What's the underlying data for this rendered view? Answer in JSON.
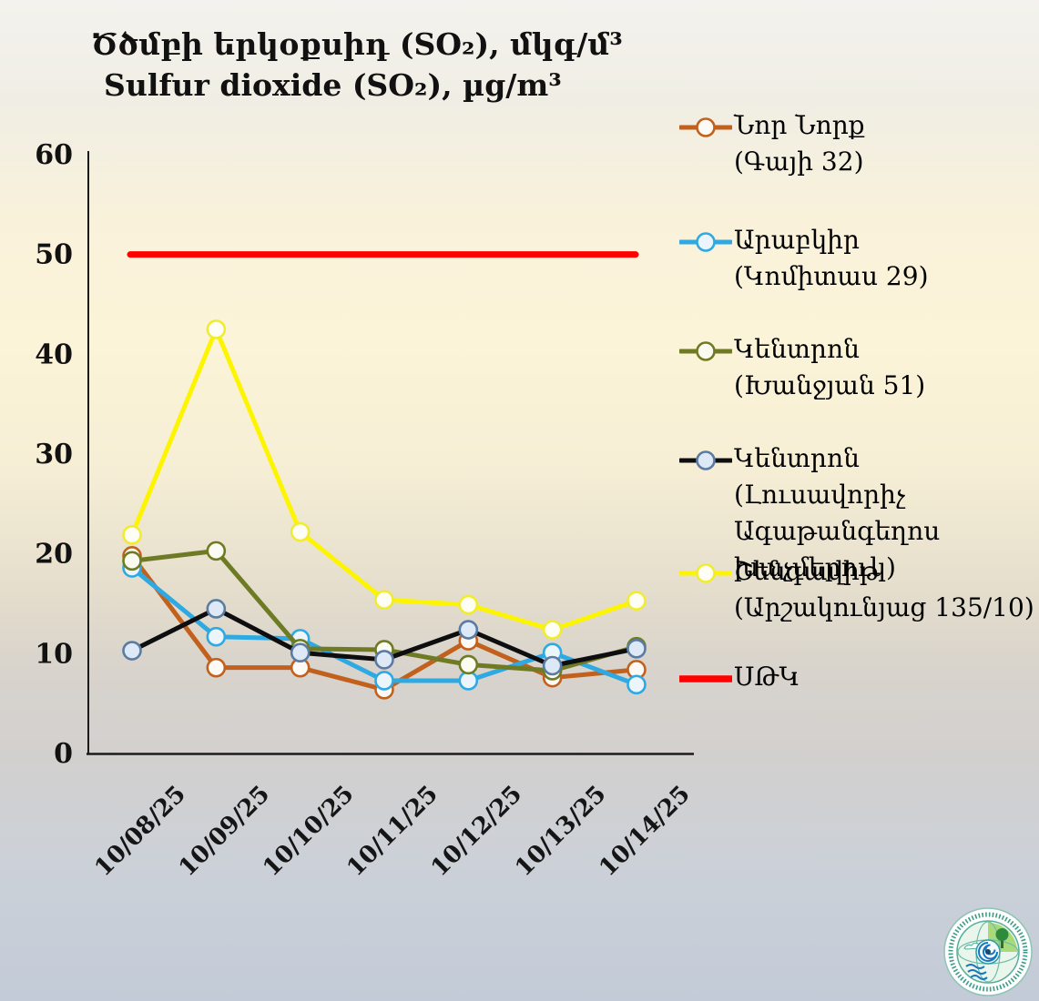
{
  "title": {
    "armenian": "Ծծմբի երկօքսիդ (SO₂), մկգ/մ³",
    "english": "Sulfur dioxide (SO₂), µg/m³"
  },
  "chart_data": {
    "type": "line",
    "title": "Ծծմբի երկօքսիդ (SO₂), մկգ/մ³ / Sulfur dioxide (SO₂), µg/m³",
    "categories": [
      "10/08/25",
      "10/09/25",
      "10/10/25",
      "10/11/25",
      "10/12/25",
      "10/13/25",
      "10/14/25"
    ],
    "series": [
      {
        "name": "Նոր Նորք (Գայի 32)",
        "legend_lines": [
          "Նոր Նորք",
          "(Գայի 32)"
        ],
        "color": "#C2611E",
        "marker_fill": "#FDFAF5",
        "marker_ring": "#C2611E",
        "values": [
          19.8,
          8.6,
          8.6,
          6.4,
          11.3,
          7.6,
          8.4
        ]
      },
      {
        "name": "Արաբկիր (Կոմիտաս 29)",
        "legend_lines": [
          "Արաբկիր",
          "(Կոմիտաս 29)"
        ],
        "color": "#2EA9E1",
        "marker_fill": "#EDF5FC",
        "marker_ring": "#2EA9E1",
        "values": [
          18.6,
          11.7,
          11.5,
          7.3,
          7.3,
          10.1,
          6.9
        ]
      },
      {
        "name": "Կենտրոն (Խանջյան 51)",
        "legend_lines": [
          "Կենտրոն",
          "(Խանջյան 51)"
        ],
        "color": "#6F7B24",
        "marker_fill": "#FBFBF2",
        "marker_ring": "#6F7B24",
        "values": [
          19.3,
          20.3,
          10.5,
          10.4,
          8.9,
          8.3,
          10.7
        ]
      },
      {
        "name": "Կենտրոն (Լուսավորիչ Ագաթանգեղոս խաչմերուկ)",
        "legend_lines": [
          "Կենտրոն (Լուսավորիչ",
          "Ագաթանգեղոս",
          "խաչմերուկ)"
        ],
        "color": "#0E0E10",
        "marker_fill": "#DDE9F7",
        "marker_ring": "#5B7BA3",
        "values": [
          10.3,
          14.5,
          10.1,
          9.4,
          12.4,
          8.8,
          10.5
        ]
      },
      {
        "name": "Շենգավիթ (Արշակունյաց 135/10)",
        "legend_lines": [
          "Շենգավիթ",
          "(Արշակունյաց 135/10)"
        ],
        "color": "#FDF500",
        "marker_fill": "#FEFEF4",
        "marker_ring": "#F0EC30",
        "values": [
          21.9,
          42.5,
          22.2,
          15.4,
          14.9,
          12.4,
          15.3
        ]
      }
    ],
    "threshold": {
      "name": "ՍԹԿ",
      "legend_lines": [
        "ՍԹԿ"
      ],
      "value": 50,
      "color": "#FE0000"
    },
    "xlabel": "",
    "ylabel": "",
    "ylim": [
      0,
      60
    ],
    "yticks": [
      0,
      10,
      20,
      30,
      40,
      50,
      60
    ],
    "grid": false,
    "legend_position": "right"
  },
  "logo": {
    "name": "hydrometeorology-and-monitoring-center-logo"
  }
}
